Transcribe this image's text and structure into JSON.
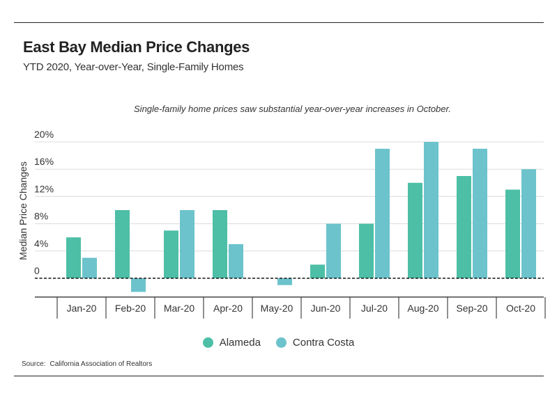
{
  "header": {
    "title": "East Bay Median Price Changes",
    "subtitle": "YTD 2020, Year-over-Year, Single-Family Homes"
  },
  "annotation": "Single-family home prices saw substantial year-over-year increases in October.",
  "source": {
    "label": "Source:",
    "text": "California Association of Realtors"
  },
  "colors": {
    "alameda": "#4dbfa6",
    "contra_costa": "#6cc3cc"
  },
  "chart_data": {
    "type": "bar",
    "title": "East Bay Median Price Changes",
    "subtitle": "YTD 2020, Year-over-Year, Single-Family Homes",
    "xlabel": "",
    "ylabel": "Median Price Changes",
    "ylim": [
      -3,
      20
    ],
    "yticks": [
      0,
      4,
      8,
      12,
      16,
      20
    ],
    "ytick_labels": [
      "0",
      "4%",
      "8%",
      "12%",
      "16%",
      "20%"
    ],
    "grid": true,
    "legend_position": "bottom-center",
    "categories": [
      "Jan-20",
      "Feb-20",
      "Mar-20",
      "Apr-20",
      "May-20",
      "Jun-20",
      "Jul-20",
      "Aug-20",
      "Sep-20",
      "Oct-20"
    ],
    "series": [
      {
        "name": "Alameda",
        "values": [
          6,
          10,
          7,
          10,
          0,
          2,
          8,
          14,
          15,
          13
        ]
      },
      {
        "name": "Contra Costa",
        "values": [
          3,
          -2,
          10,
          5,
          -1,
          8,
          19,
          20,
          19,
          16
        ]
      }
    ]
  }
}
